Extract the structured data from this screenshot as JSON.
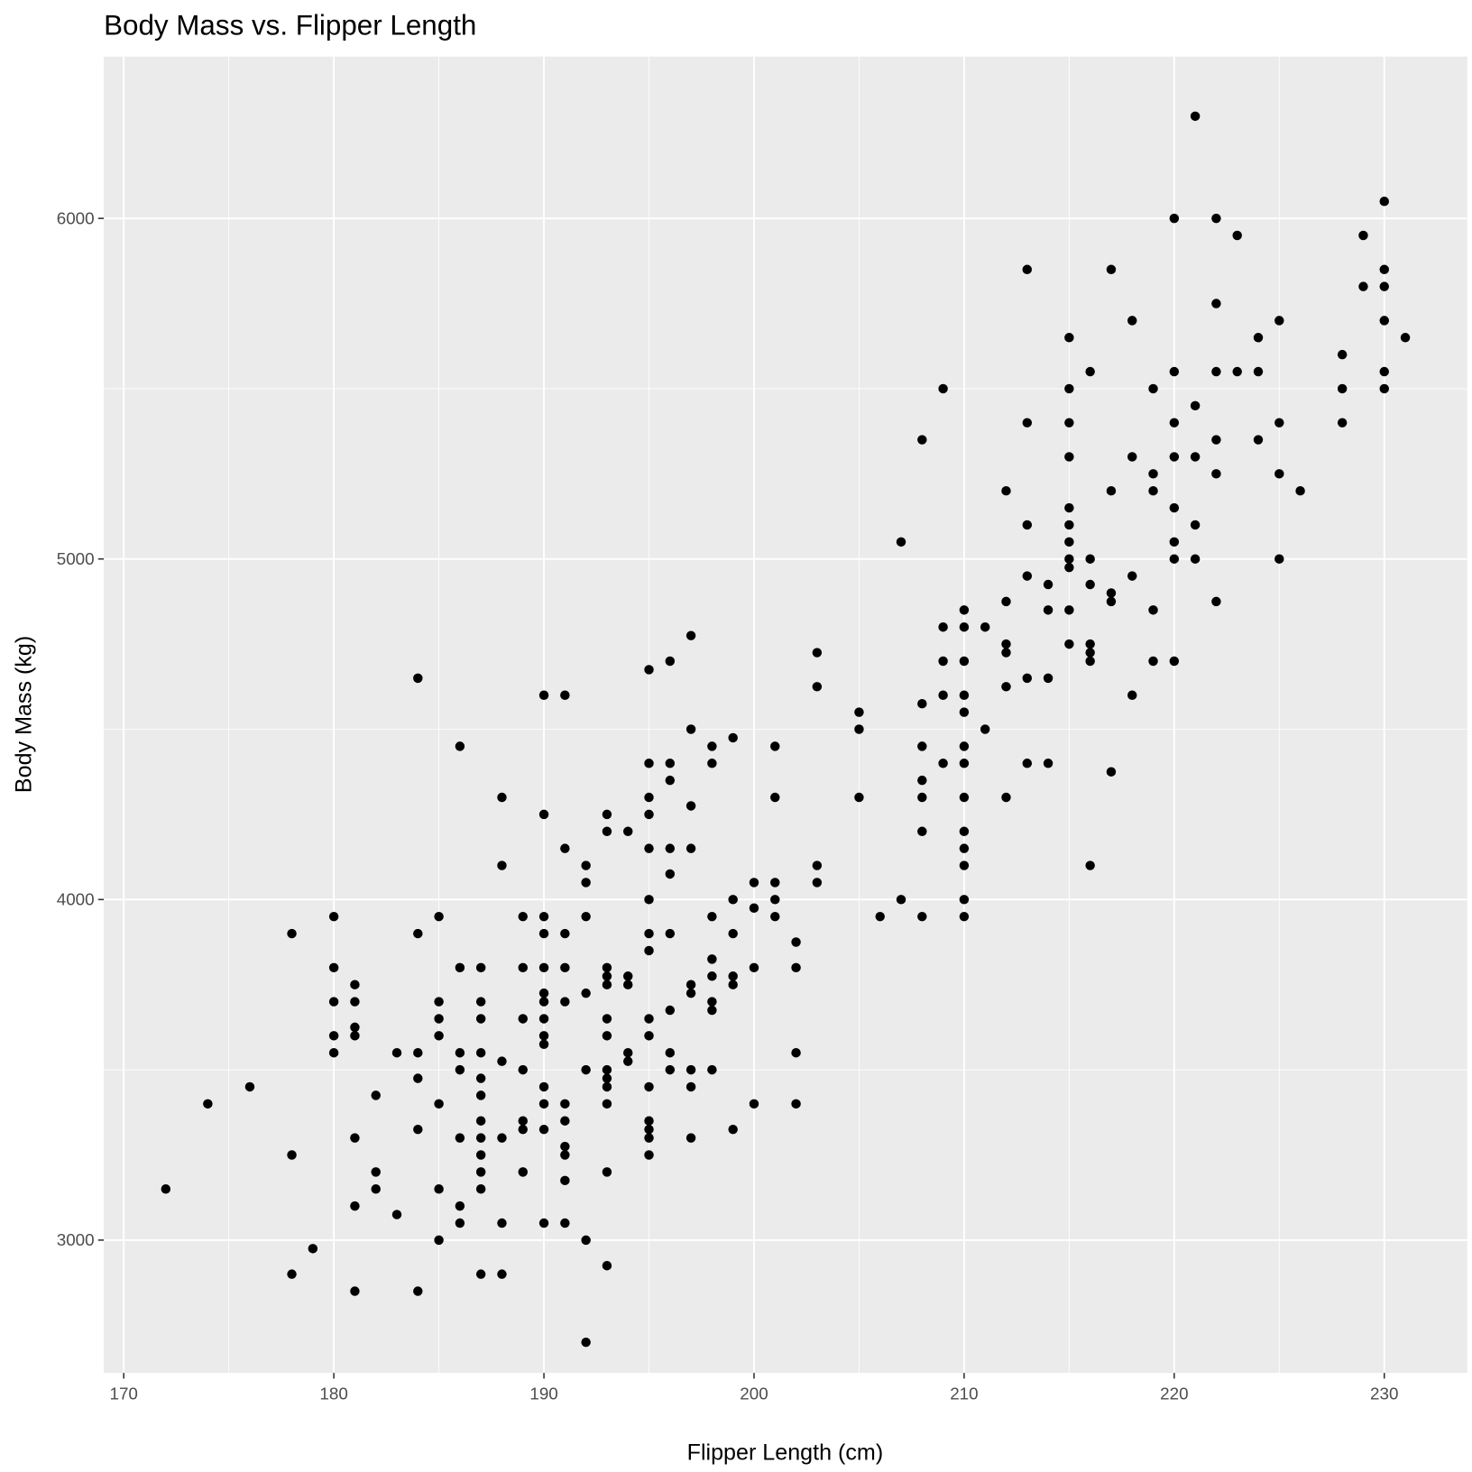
{
  "chart_data": {
    "type": "scatter",
    "title": "Body Mass vs. Flipper Length",
    "x_label": "Flipper Length (cm)",
    "y_label": "Body Mass (kg)",
    "color": "#000000",
    "grid": true,
    "xlim": [
      169.05,
      233.95
    ],
    "ylim": [
      2610,
      6475
    ],
    "xticks": [
      170,
      180,
      190,
      200,
      210,
      220,
      230
    ],
    "yticks": [
      3000,
      4000,
      5000,
      6000
    ],
    "xminor": [
      175,
      185,
      195,
      205,
      215,
      225
    ],
    "yminor": [
      3500,
      4500,
      5500
    ],
    "x": [
      172,
      174,
      176,
      178,
      178,
      178,
      179,
      180,
      180,
      180,
      180,
      180,
      181,
      181,
      181,
      181,
      181,
      181,
      181,
      182,
      182,
      182,
      183,
      183,
      184,
      184,
      184,
      184,
      184,
      184,
      185,
      185,
      185,
      185,
      185,
      185,
      185,
      186,
      186,
      186,
      186,
      186,
      186,
      186,
      187,
      187,
      187,
      187,
      187,
      187,
      187,
      187,
      187,
      187,
      187,
      187,
      188,
      188,
      188,
      188,
      188,
      188,
      189,
      189,
      189,
      189,
      189,
      189,
      189,
      190,
      190,
      190,
      190,
      190,
      190,
      190,
      190,
      190,
      190,
      190,
      190,
      190,
      190,
      191,
      191,
      191,
      191,
      191,
      191,
      191,
      191,
      191,
      191,
      191,
      192,
      192,
      192,
      192,
      192,
      192,
      192,
      193,
      193,
      193,
      193,
      193,
      193,
      193,
      193,
      193,
      193,
      193,
      193,
      193,
      194,
      194,
      194,
      194,
      194,
      195,
      195,
      195,
      195,
      195,
      195,
      195,
      195,
      195,
      195,
      195,
      195,
      195,
      195,
      195,
      196,
      196,
      196,
      196,
      196,
      196,
      196,
      196,
      196,
      197,
      197,
      197,
      197,
      197,
      197,
      197,
      197,
      197,
      198,
      198,
      198,
      198,
      198,
      198,
      198,
      198,
      199,
      199,
      199,
      199,
      199,
      199,
      200,
      200,
      200,
      200,
      201,
      201,
      201,
      201,
      201,
      202,
      202,
      202,
      202,
      203,
      203,
      203,
      203,
      205,
      205,
      205,
      206,
      207,
      207,
      208,
      208,
      208,
      208,
      208,
      208,
      208,
      209,
      209,
      209,
      209,
      209,
      210,
      210,
      210,
      210,
      210,
      210,
      210,
      210,
      210,
      210,
      210,
      210,
      210,
      211,
      211,
      212,
      212,
      212,
      212,
      212,
      212,
      213,
      213,
      213,
      213,
      213,
      213,
      214,
      214,
      214,
      214,
      215,
      215,
      215,
      215,
      215,
      215,
      215,
      215,
      215,
      215,
      215,
      216,
      216,
      216,
      216,
      216,
      216,
      216,
      217,
      217,
      217,
      217,
      217,
      218,
      218,
      218,
      218,
      219,
      219,
      219,
      219,
      219,
      220,
      220,
      220,
      220,
      220,
      220,
      220,
      220,
      221,
      221,
      221,
      221,
      221,
      222,
      222,
      222,
      222,
      222,
      222,
      223,
      223,
      224,
      224,
      224,
      225,
      225,
      225,
      225,
      226,
      228,
      228,
      228,
      229,
      229,
      230,
      230,
      230,
      230,
      230,
      230,
      231
    ],
    "values": [
      3150,
      3400,
      3450,
      3900,
      3250,
      2900,
      2975,
      3950,
      3800,
      3700,
      3600,
      3550,
      3750,
      3700,
      3625,
      3600,
      3300,
      3100,
      2850,
      3425,
      3200,
      3150,
      3550,
      3075,
      4650,
      3900,
      3550,
      3475,
      3325,
      2850,
      3950,
      3700,
      3650,
      3600,
      3400,
      3150,
      3000,
      4450,
      3800,
      3550,
      3500,
      3300,
      3100,
      3050,
      3800,
      3700,
      3650,
      3550,
      3475,
      3425,
      3350,
      3300,
      3250,
      3200,
      3150,
      2900,
      4300,
      4100,
      3525,
      3300,
      3050,
      2900,
      3950,
      3800,
      3650,
      3500,
      3350,
      3325,
      3200,
      4600,
      4250,
      3950,
      3900,
      3800,
      3725,
      3700,
      3650,
      3600,
      3575,
      3450,
      3400,
      3325,
      3050,
      4600,
      4150,
      3900,
      3800,
      3700,
      3400,
      3350,
      3275,
      3250,
      3175,
      3050,
      4100,
      4050,
      3950,
      3725,
      3500,
      3000,
      2700,
      4250,
      4200,
      3800,
      3775,
      3750,
      3650,
      3600,
      3500,
      3475,
      3450,
      3400,
      3200,
      2925,
      4200,
      3775,
      3750,
      3550,
      3525,
      4675,
      4400,
      4300,
      4250,
      4150,
      4000,
      3900,
      3850,
      3650,
      3600,
      3450,
      3350,
      3325,
      3300,
      3250,
      4700,
      4400,
      4350,
      4150,
      4075,
      3900,
      3675,
      3550,
      3500,
      4775,
      4500,
      4275,
      4150,
      3750,
      3725,
      3500,
      3450,
      3300,
      4450,
      4400,
      3950,
      3825,
      3775,
      3700,
      3675,
      3500,
      4475,
      4000,
      3900,
      3775,
      3750,
      3325,
      4050,
      3975,
      3800,
      3400,
      4450,
      4300,
      4050,
      4000,
      3950,
      3875,
      3800,
      3550,
      3400,
      4725,
      4625,
      4100,
      4050,
      4550,
      4500,
      4300,
      3950,
      5050,
      4000,
      5350,
      4575,
      4450,
      4350,
      4300,
      4200,
      3950,
      5500,
      4800,
      4700,
      4600,
      4400,
      4850,
      4800,
      4700,
      4600,
      4550,
      4450,
      4400,
      4300,
      4200,
      4150,
      4100,
      4000,
      3950,
      4800,
      4500,
      5200,
      4875,
      4750,
      4725,
      4625,
      4300,
      5850,
      5400,
      5100,
      4950,
      4650,
      4400,
      4925,
      4850,
      4650,
      4400,
      5650,
      5500,
      5400,
      5300,
      5150,
      5100,
      5050,
      5000,
      4975,
      4850,
      4750,
      5550,
      5000,
      4925,
      4750,
      4725,
      4700,
      4100,
      5850,
      5200,
      4900,
      4875,
      4375,
      5700,
      5300,
      4950,
      4600,
      5500,
      5250,
      5200,
      4850,
      4700,
      6000,
      5550,
      5400,
      5300,
      5150,
      5050,
      5000,
      4700,
      6300,
      5450,
      5300,
      5100,
      5000,
      6000,
      5750,
      5550,
      5350,
      5250,
      4875,
      5950,
      5550,
      5650,
      5550,
      5350,
      5700,
      5400,
      5250,
      5000,
      5200,
      5600,
      5500,
      5400,
      5950,
      5800,
      6050,
      5850,
      5800,
      5700,
      5550,
      5500,
      5650
    ]
  }
}
